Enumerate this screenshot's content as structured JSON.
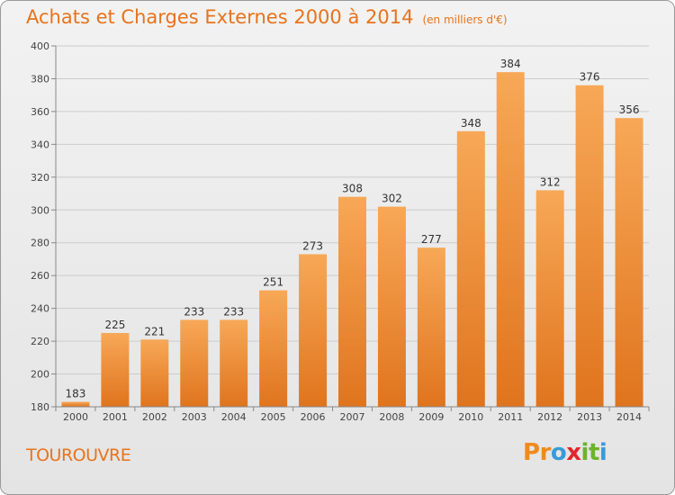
{
  "title": "Achats et Charges Externes 2000 à 2014",
  "subtitle": "(en milliers d'€)",
  "city": "TOUROUVRE",
  "logo": {
    "letters": [
      "P",
      "r",
      "o",
      "x",
      "i",
      "t",
      "i"
    ],
    "colors": [
      "#f08a1c",
      "#f08a1c",
      "#3a9ad9",
      "#e0262a",
      "#6bb42c",
      "#6bb42c",
      "#3a9ad9"
    ]
  },
  "colors": {
    "title": "#e8731c",
    "bar_light": "#f7a857",
    "bar_dark": "#e0741e",
    "grid": "#cccccc"
  },
  "chart_data": {
    "type": "bar",
    "title": "Achats et Charges Externes 2000 à 2014",
    "xlabel": "",
    "ylabel": "",
    "ylim": [
      180,
      400
    ],
    "yticks": [
      180,
      200,
      220,
      240,
      260,
      280,
      300,
      320,
      340,
      360,
      380,
      400
    ],
    "categories": [
      "2000",
      "2001",
      "2002",
      "2003",
      "2004",
      "2005",
      "2006",
      "2007",
      "2008",
      "2009",
      "2010",
      "2011",
      "2012",
      "2013",
      "2014"
    ],
    "values": [
      183,
      225,
      221,
      233,
      233,
      251,
      273,
      308,
      302,
      277,
      348,
      384,
      312,
      376,
      356
    ]
  }
}
